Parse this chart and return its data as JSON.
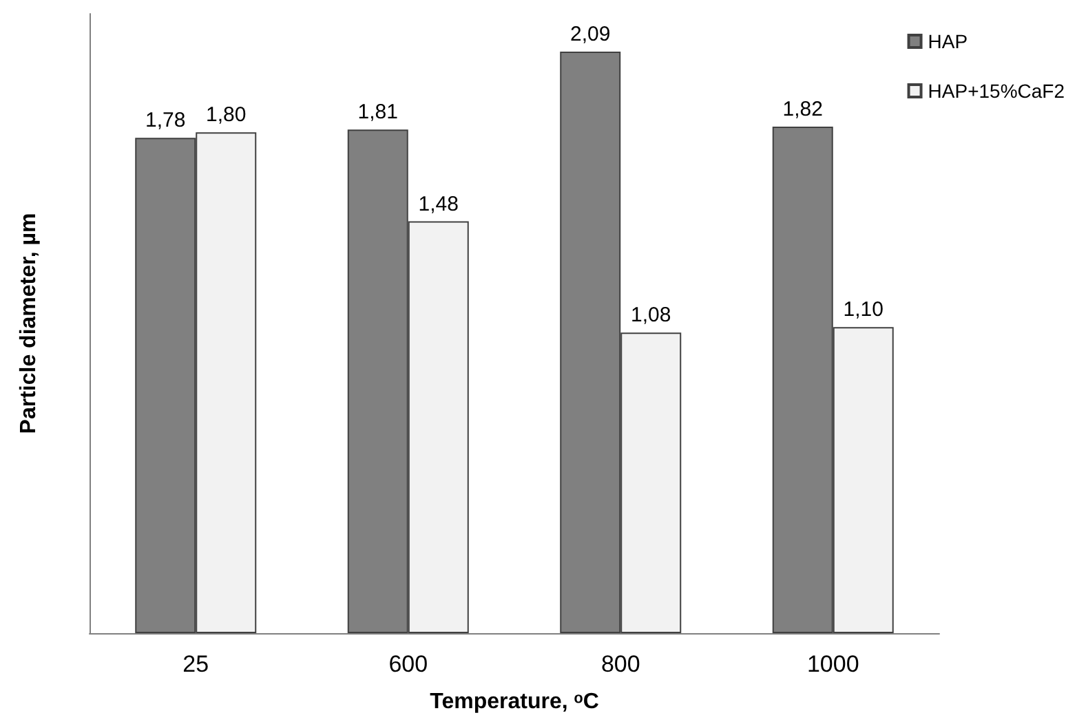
{
  "chart_data": {
    "type": "bar",
    "xlabel": "Temperature, ᵒC",
    "ylabel": "Particle diameter, µm",
    "categories": [
      "25",
      "600",
      "800",
      "1000"
    ],
    "series": [
      {
        "name": "HAP",
        "color": "#808080",
        "values": [
          1.78,
          1.81,
          2.09,
          1.82
        ],
        "value_labels": [
          "1,78",
          "1,81",
          "2,09",
          "1,82"
        ]
      },
      {
        "name": "HAP+15%CaF2",
        "color": "#f2f2f2",
        "values": [
          1.8,
          1.48,
          1.08,
          1.1
        ],
        "value_labels": [
          "1,80",
          "1,48",
          "1,08",
          "1,10"
        ]
      }
    ],
    "grid": false,
    "legend": "top right"
  }
}
